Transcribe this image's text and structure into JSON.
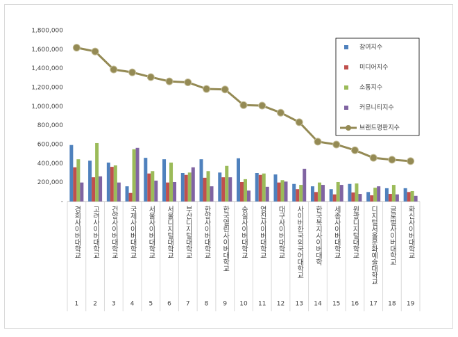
{
  "chart_data": {
    "type": "bar",
    "categories": [
      "경희사이버대학교",
      "고려사이버대학교",
      "건양사이버대학교",
      "국제사이버대학교",
      "서울사이버대학교",
      "서울디지털대학교",
      "부산디지털대학교",
      "한양사이버대학교",
      "한국열린사이버대학교",
      "숭실사이버대학교",
      "영진사이버대학교",
      "대구사이버대학교",
      "사이버한국외국어대학교",
      "한국복지사이버대학",
      "세종사이버대학교",
      "원광디지털대학교",
      "디지털서울문화예술대학교",
      "글로벌사이버대학교",
      "화신사이버대학교"
    ],
    "ranks": [
      1,
      2,
      3,
      4,
      5,
      6,
      7,
      8,
      9,
      10,
      11,
      12,
      13,
      14,
      15,
      16,
      17,
      18,
      19
    ],
    "series": [
      {
        "name": "참여지수",
        "type": "bar",
        "color": "#4f81bd",
        "values": [
          595000,
          430000,
          410000,
          160000,
          460000,
          445000,
          300000,
          445000,
          305000,
          455000,
          300000,
          285000,
          185000,
          160000,
          130000,
          185000,
          100000,
          140000,
          140000
        ]
      },
      {
        "name": "미디어지수",
        "type": "bar",
        "color": "#c0504d",
        "values": [
          360000,
          255000,
          365000,
          90000,
          295000,
          200000,
          280000,
          250000,
          255000,
          205000,
          280000,
          200000,
          130000,
          100000,
          75000,
          95000,
          65000,
          80000,
          100000
        ]
      },
      {
        "name": "소통지수",
        "type": "bar",
        "color": "#9bbb59",
        "values": [
          445000,
          615000,
          380000,
          550000,
          320000,
          410000,
          305000,
          320000,
          375000,
          235000,
          295000,
          225000,
          175000,
          200000,
          205000,
          190000,
          145000,
          175000,
          110000
        ]
      },
      {
        "name": "커뮤니티지수",
        "type": "bar",
        "color": "#8064a2",
        "values": [
          200000,
          265000,
          200000,
          565000,
          220000,
          205000,
          360000,
          160000,
          255000,
          115000,
          155000,
          210000,
          345000,
          175000,
          175000,
          80000,
          160000,
          75000,
          60000
        ]
      },
      {
        "name": "브랜드평판지수",
        "type": "line",
        "color": "#948a54",
        "values": [
          1620000,
          1580000,
          1390000,
          1360000,
          1310000,
          1265000,
          1255000,
          1185000,
          1180000,
          1015000,
          1010000,
          935000,
          835000,
          630000,
          600000,
          540000,
          460000,
          440000,
          425000
        ]
      }
    ],
    "ylim": [
      0,
      1800000
    ],
    "yticks": [
      {
        "value": 0,
        "label": "-"
      },
      {
        "value": 200000,
        "label": "200,000"
      },
      {
        "value": 400000,
        "label": "400,000"
      },
      {
        "value": 600000,
        "label": "600,000"
      },
      {
        "value": 800000,
        "label": "800,000"
      },
      {
        "value": 1000000,
        "label": "1,000,000"
      },
      {
        "value": 1200000,
        "label": "1,200,000"
      },
      {
        "value": 1400000,
        "label": "1,400,000"
      },
      {
        "value": 1600000,
        "label": "1,600,000"
      },
      {
        "value": 1800000,
        "label": "1,800,000"
      }
    ],
    "grid": false,
    "legend": "upper right"
  }
}
